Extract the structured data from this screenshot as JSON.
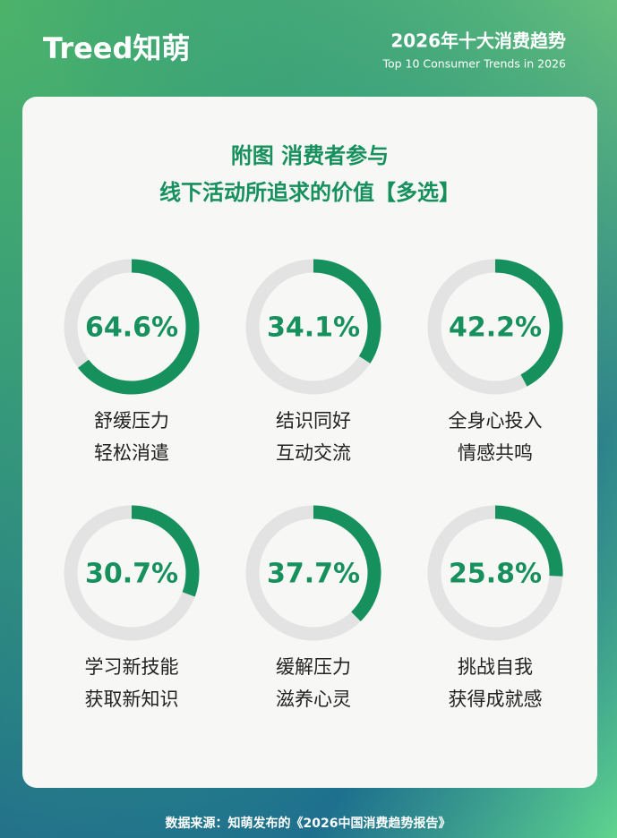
{
  "header": {
    "logo": "Treed知萌",
    "title": "2026年十大消费趋势",
    "subtitle": "Top 10 Consumer Trends in 2026"
  },
  "figure_title": [
    "附图  消费者参与",
    "线下活动所追求的价值【多选】"
  ],
  "chart_data": [
    {
      "type": "donut",
      "values": [
        64.6
      ],
      "value_labels": [
        "64.6%"
      ],
      "label": [
        "舒缓压力",
        "轻松消遣"
      ],
      "lim": [
        0,
        100
      ],
      "color": "#16905c",
      "track_color": "#e3e3e3"
    },
    {
      "type": "donut",
      "values": [
        34.1
      ],
      "value_labels": [
        "34.1%"
      ],
      "label": [
        "结识同好",
        "互动交流"
      ],
      "lim": [
        0,
        100
      ],
      "color": "#16905c",
      "track_color": "#e3e3e3"
    },
    {
      "type": "donut",
      "values": [
        42.2
      ],
      "value_labels": [
        "42.2%"
      ],
      "label": [
        "全身心投入",
        "情感共鸣"
      ],
      "lim": [
        0,
        100
      ],
      "color": "#16905c",
      "track_color": "#e3e3e3"
    },
    {
      "type": "donut",
      "values": [
        30.7
      ],
      "value_labels": [
        "30.7%"
      ],
      "label": [
        "学习新技能",
        "获取新知识"
      ],
      "lim": [
        0,
        100
      ],
      "color": "#16905c",
      "track_color": "#e3e3e3"
    },
    {
      "type": "donut",
      "values": [
        37.7
      ],
      "value_labels": [
        "37.7%"
      ],
      "label": [
        "缓解压力",
        "滋养心灵"
      ],
      "lim": [
        0,
        100
      ],
      "color": "#16905c",
      "track_color": "#e3e3e3"
    },
    {
      "type": "donut",
      "values": [
        25.8
      ],
      "value_labels": [
        "25.8%"
      ],
      "label": [
        "挑战自我",
        "获得成就感"
      ],
      "lim": [
        0,
        100
      ],
      "color": "#16905c",
      "track_color": "#e3e3e3"
    }
  ],
  "footer": "数据来源：知萌发布的《2026中国消费趋势报告》"
}
